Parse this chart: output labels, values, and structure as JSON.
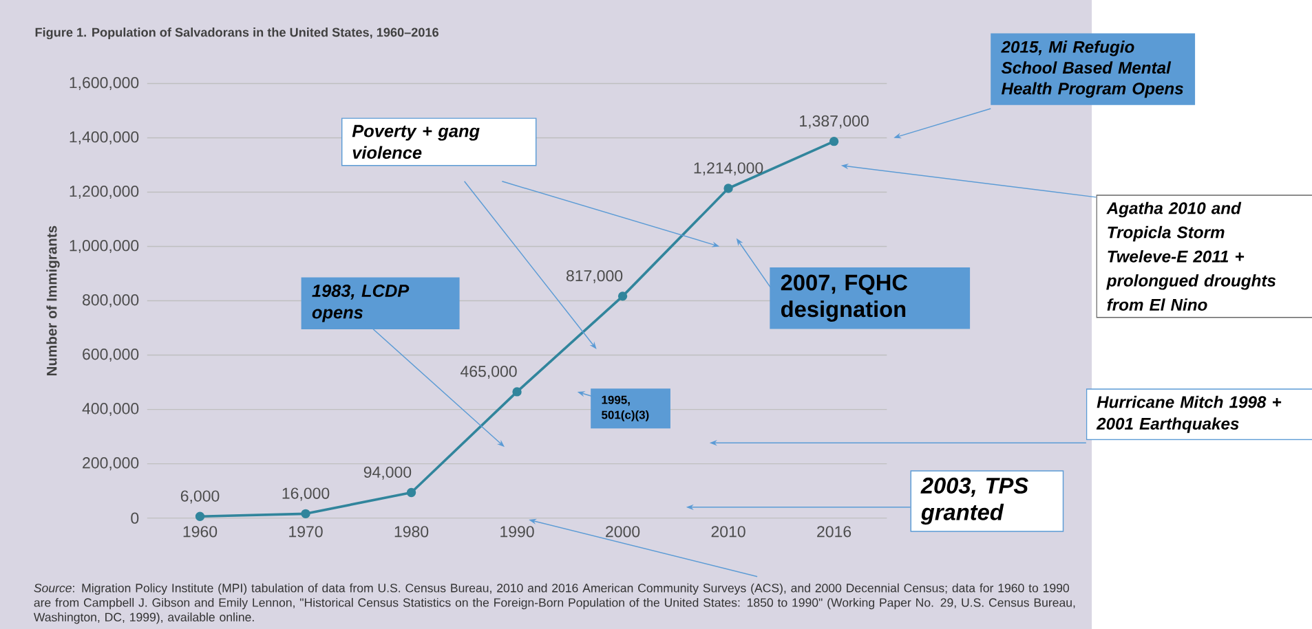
{
  "chart_data": {
    "type": "line",
    "title": "Figure 1. Population of Salvadorans in the United States, 1960–2016",
    "ylabel": "Number of Immigrants",
    "categories": [
      "1960",
      "1970",
      "1980",
      "1990",
      "2000",
      "2010",
      "2016"
    ],
    "values": [
      6000,
      16000,
      94000,
      465000,
      817000,
      1214000,
      1387000
    ],
    "value_labels": [
      "6,000",
      "16,000",
      "94,000",
      "465,000",
      "817,000",
      "1,214,000",
      "1,387,000"
    ],
    "color": "#31859c",
    "marker": "circle",
    "grid": "y",
    "ylim": [
      0,
      1600000
    ],
    "yticks": [
      {
        "value": 0,
        "label": "0"
      },
      {
        "value": 200000,
        "label": "200,000"
      },
      {
        "value": 400000,
        "label": "400,000"
      },
      {
        "value": 600000,
        "label": "600,000"
      },
      {
        "value": 800000,
        "label": "800,000"
      },
      {
        "value": 1000000,
        "label": "1,000,000"
      },
      {
        "value": 1200000,
        "label": "1,200,000"
      },
      {
        "value": 1400000,
        "label": "1,400,000"
      },
      {
        "value": 1600000,
        "label": "1,600,000"
      }
    ],
    "annotations": [
      "Poverty + gang violence",
      "1983, LCDP opens",
      "1995, 501(c)(3)",
      "2007, FQHC designation",
      "2015, Mi Refugio School Based Mental Health Program Opens",
      "Agatha 2010 and Tropicla Storm Tweleve-E 2011 + prolongued droughts from El Nino",
      "Hurricane Mitch 1998 + 2001 Earthquakes",
      "2003, TPS granted",
      "*Source*: Migration Policy Institute (MPI) tabulation of data from U.S. Census Bureau, 2010 and 2016 American Community Surveys (ACS), and 2000 Decennial Census; data for 1960 to 1990 are from Campbell J. Gibson and Emily Lennon, \"Historical Census Statistics on the Foreign-Born Population of the United States: 1850 to 1990\" (Working Paper No. 29, U.S. Census Bureau, Washington, DC, 1999), available online."
    ]
  }
}
